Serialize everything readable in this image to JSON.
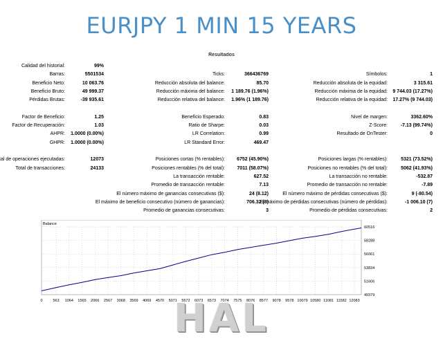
{
  "title": "EURJPY 1 MIN 15 YEARS",
  "report": {
    "header": "Resultados",
    "rows": [
      {
        "cells": [
          {
            "label": "Calidad del historial:",
            "value": "99%"
          }
        ]
      },
      {
        "cells": [
          {
            "label": "Barras:",
            "value": "5501534"
          },
          {
            "label": "Ticks:",
            "value": "366436769"
          },
          {
            "label": "Símbolos:",
            "value": "1"
          }
        ]
      },
      {
        "cells": [
          {
            "label": "Beneficio Neto:",
            "value": "10 063.76"
          },
          {
            "label": "Reducción absoluta del balance:",
            "value": "85.70"
          },
          {
            "label": "Reducción absoluta de la equidad:",
            "value": "3 315.61"
          }
        ]
      },
      {
        "cells": [
          {
            "label": "Beneficio Bruto:",
            "value": "49 999.37"
          },
          {
            "label": "Reducción máxima del balance:",
            "value": "1 189.76 (1.96%)"
          },
          {
            "label": "Reducción máxima de la equidad:",
            "value": "9 744.03 (17.27%)"
          }
        ]
      },
      {
        "cells": [
          {
            "label": "Pérdidas Brutas:",
            "value": "-39 935.61"
          },
          {
            "label": "Reducción relativa del balance:",
            "value": "1.96% (1 189.76)"
          },
          {
            "label": "Reducción relativa de la equidad:",
            "value": "17.27% (9 744.03)"
          }
        ]
      },
      {
        "cells": []
      },
      {
        "cells": [
          {
            "label": "Factor de Beneficio:",
            "value": "1.25"
          },
          {
            "label": "Beneficio Esperado:",
            "value": "0.83"
          },
          {
            "label": "Nivel de margen:",
            "value": "3362.60%"
          }
        ]
      },
      {
        "cells": [
          {
            "label": "Factor de Recuperación:",
            "value": "1.03"
          },
          {
            "label": "Ratio de Sharpe:",
            "value": "0.03"
          },
          {
            "label": "Z-Score:",
            "value": "-7.13 (99.74%)"
          }
        ]
      },
      {
        "cells": [
          {
            "label": "AHPR:",
            "value": "1.0000 (0.00%)"
          },
          {
            "label": "LR Correlation:",
            "value": "0.99"
          },
          {
            "label": "Resultado de OnTester:",
            "value": "0"
          }
        ]
      },
      {
        "cells": [
          {
            "label": "GHPR:",
            "value": "1.0000 (0.00%)"
          },
          {
            "label": "LR Standard Error:",
            "value": "469.47"
          }
        ]
      },
      {
        "cells": []
      },
      {
        "cells": [
          {
            "label": "Total de operaciones ejecutadas:",
            "value": "12073"
          },
          {
            "label": "Posiciones cortas (% rentables):",
            "value": "6752 (45.90%)"
          },
          {
            "label": "Posiciones largas (% rentables):",
            "value": "5321 (73.52%)"
          }
        ]
      },
      {
        "cells": [
          {
            "label": "Total de transacciones:",
            "value": "24133"
          },
          {
            "label": "Posiciones rentables (% del total):",
            "value": "7011 (58.07%)"
          },
          {
            "label": "Posiciones no rentables (% del total):",
            "value": "5062 (41.93%)"
          }
        ]
      },
      {
        "cells": [
          null,
          {
            "label": "La transacción rentable:",
            "value": "627.52"
          },
          {
            "label": "La transacción no rentable:",
            "value": "-532.87"
          }
        ]
      },
      {
        "cells": [
          null,
          {
            "label": "Promedio de transacción rentable:",
            "value": "7.13"
          },
          {
            "label": "Promedio de transacción no rentable:",
            "value": "-7.89"
          }
        ]
      },
      {
        "cells": [
          null,
          {
            "label": "El número máximo de ganancias consecutivas ($):",
            "value": "24 (8.12)"
          },
          {
            "label": "El número máximo de pérdidas consecutivas ($):",
            "value": "9 (-80.54)"
          }
        ]
      },
      {
        "cells": [
          null,
          {
            "label": "El máximo de beneficio consecutivo (número de ganancias):",
            "value": "706.32 (8)"
          },
          {
            "label": "El máximo de pérdidas consecutivas (número de pérdidas):",
            "value": "-1 006.10 (7)"
          }
        ]
      },
      {
        "cells": [
          null,
          {
            "label": "Promedio de ganancias consecutivas:",
            "value": "3"
          },
          {
            "label": "Promedio de pérdidas consecutivas:",
            "value": "2"
          }
        ]
      }
    ]
  },
  "chart_data": {
    "type": "line",
    "title": "Balance",
    "x_ticks": [
      "0",
      "563",
      "1064",
      "1565",
      "2066",
      "2567",
      "3068",
      "3569",
      "4069",
      "4570",
      "5071",
      "5572",
      "6073",
      "6573",
      "7074",
      "7575",
      "8076",
      "8577",
      "9078",
      "9578",
      "10079",
      "10580",
      "11081",
      "11582",
      "12083"
    ],
    "y_ticks": [
      "60516",
      "58288",
      "56061",
      "53834",
      "51606",
      "49379"
    ],
    "ylim": [
      49379,
      60516
    ],
    "xlim": [
      0,
      12350
    ],
    "series": [
      {
        "values_x": [
          0,
          563,
          1064,
          1565,
          2066,
          2567,
          3068,
          3569,
          4069,
          4570,
          5071,
          5572,
          6073,
          6573,
          7074,
          7575,
          8076,
          8577,
          9078,
          9578,
          10079,
          10580,
          11081,
          11582,
          12083,
          12350
        ],
        "values_y": [
          50000,
          50550,
          51000,
          51400,
          51850,
          52200,
          52500,
          52950,
          53300,
          53650,
          54250,
          54850,
          55400,
          55950,
          56350,
          56800,
          57150,
          57500,
          57850,
          58250,
          58650,
          58950,
          59300,
          59750,
          60150,
          60350
        ],
        "color": "#00008b"
      }
    ],
    "grid": true
  }
}
